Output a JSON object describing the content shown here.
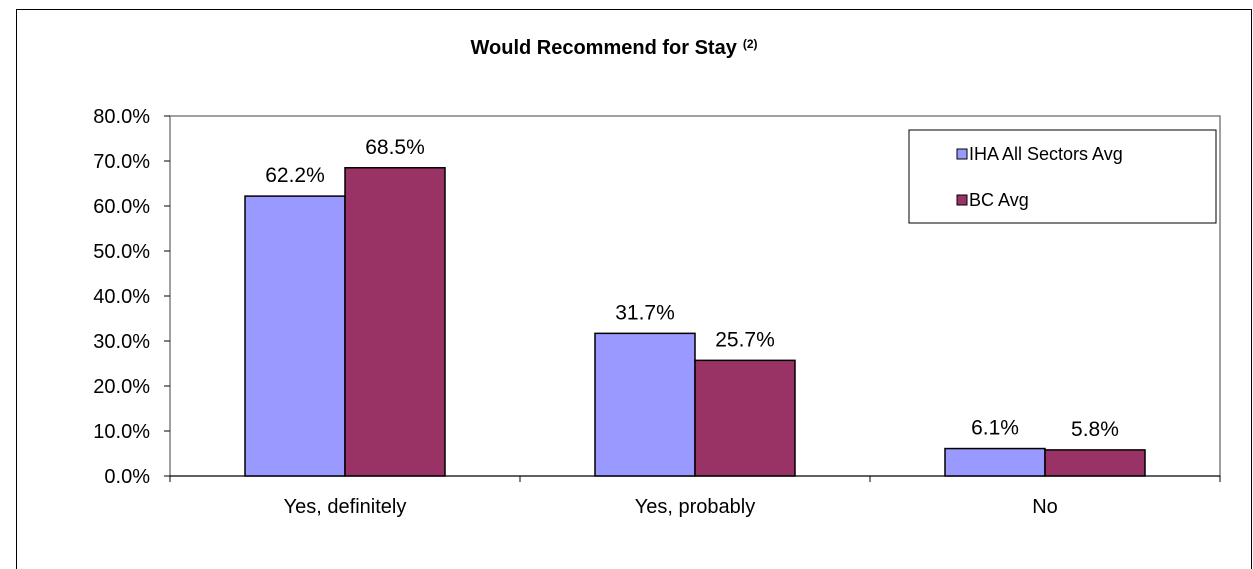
{
  "chart_data": {
    "type": "bar",
    "title": "Would Recommend for Stay",
    "title_superscript": "(2)",
    "categories": [
      "Yes, definitely",
      "Yes, probably",
      "No"
    ],
    "series": [
      {
        "name": "IHA All Sectors Avg",
        "color": "#9999ff",
        "values": [
          62.2,
          31.7,
          6.1
        ],
        "labels": [
          "62.2%",
          "31.7%",
          "6.1%"
        ]
      },
      {
        "name": "BC Avg",
        "color": "#993366",
        "values": [
          68.5,
          25.7,
          5.8
        ],
        "labels": [
          "68.5%",
          "25.7%",
          "5.8%"
        ]
      }
    ],
    "ylim": [
      0,
      80
    ],
    "y_ticks": [
      0,
      10,
      20,
      30,
      40,
      50,
      60,
      70,
      80
    ],
    "y_tick_labels": [
      "0.0%",
      "10.0%",
      "20.0%",
      "30.0%",
      "40.0%",
      "50.0%",
      "60.0%",
      "70.0%",
      "80.0%"
    ],
    "xlabel": "",
    "ylabel": "",
    "grid": false,
    "legend_position": "top-right"
  }
}
